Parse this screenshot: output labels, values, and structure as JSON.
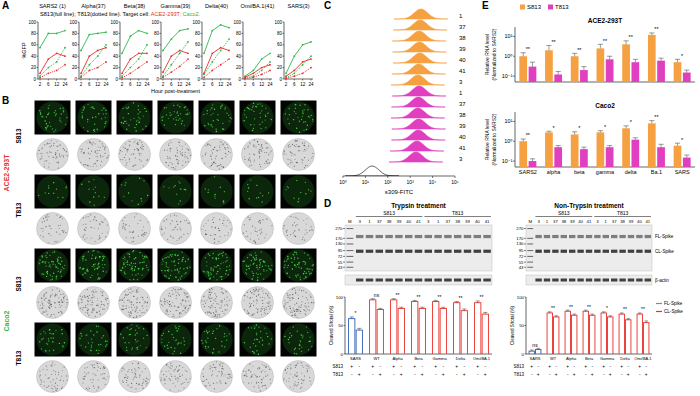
{
  "panel_labels": [
    "A",
    "B",
    "C",
    "D",
    "E"
  ],
  "panel_a": {
    "legend_parts": [
      {
        "text": "S813(full line); T813(dotted line). Target cell: ",
        "color": "#000000"
      },
      {
        "text": "ACE2-293T;",
        "color": "#e8302a"
      },
      {
        "text": " Caco2.",
        "color": "#2db84a"
      }
    ],
    "x_label": "Hour post-treatment"
  },
  "panel_b": {
    "cell_lines": [
      {
        "name": "ACE2-293T",
        "color": "#e8302a"
      },
      {
        "name": "Caco2",
        "color": "#2db84a"
      }
    ],
    "antibodies": [
      "S813",
      "T813"
    ]
  },
  "panel_d": {
    "ylim": [
      36,
      320
    ],
    "mw_markers": [
      270,
      170,
      130,
      95,
      72,
      55,
      43
    ],
    "bands": [
      {
        "label": "FL-Spike",
        "mw": 185
      },
      {
        "label": "CL-Spike",
        "mw": 92
      }
    ],
    "actin_label": "β-actin",
    "blots": [
      {
        "title": "Trypsin treatment",
        "lanes": [
          "M",
          "3",
          "1",
          "37",
          "38",
          "39",
          "40",
          "41",
          "3",
          "1",
          "37",
          "38",
          "39",
          "40",
          "41"
        ],
        "groups": [
          {
            "text": "S813",
            "first": 1,
            "last": 7
          },
          {
            "text": "T813",
            "first": 8,
            "last": 14
          }
        ]
      },
      {
        "title": "Non-Trypsin treatment",
        "lanes": [
          "M",
          "3",
          "1",
          "37",
          "38",
          "39",
          "40",
          "41",
          "3",
          "1",
          "37",
          "38",
          "39",
          "40",
          "41"
        ],
        "groups": [
          {
            "text": "S813",
            "first": 1,
            "last": 7
          },
          {
            "text": "T813",
            "first": 8,
            "last": 14
          }
        ]
      }
    ]
  },
  "chart_data": [
    {
      "type": "line",
      "title": "SARS2 (1)",
      "y_label": "%GFP",
      "categories": [
        "2",
        "6",
        "12",
        "24"
      ],
      "ylim": [
        0,
        100
      ],
      "yticks": [
        0,
        20,
        40,
        60,
        80,
        100
      ],
      "series": [
        {
          "color": "#2db84a",
          "line_style": "solid",
          "values": [
            55,
            80,
            80,
            85
          ]
        },
        {
          "color": "#2db84a",
          "line_style": "dotted",
          "values": [
            5,
            20,
            30,
            55
          ]
        },
        {
          "color": "#e8302a",
          "line_style": "solid",
          "values": [
            10,
            35,
            45,
            40
          ]
        },
        {
          "color": "#e8302a",
          "line_style": "dotted",
          "values": [
            2,
            10,
            15,
            25
          ]
        }
      ]
    },
    {
      "type": "line",
      "title": "Alpha(37)",
      "categories": [
        "2",
        "6",
        "12",
        "24"
      ],
      "ylim": [
        0,
        100
      ],
      "yticks": [
        0,
        20,
        40,
        60,
        80,
        100
      ],
      "series": [
        {
          "color": "#2db84a",
          "line_style": "solid",
          "values": [
            50,
            78,
            80,
            82
          ]
        },
        {
          "color": "#2db84a",
          "line_style": "dotted",
          "values": [
            5,
            25,
            40,
            60
          ]
        },
        {
          "color": "#e8302a",
          "line_style": "solid",
          "values": [
            10,
            40,
            50,
            55
          ]
        },
        {
          "color": "#e8302a",
          "line_style": "dotted",
          "values": [
            3,
            15,
            20,
            30
          ]
        }
      ]
    },
    {
      "type": "line",
      "title": "Beta(38)",
      "categories": [
        "2",
        "6",
        "12",
        "24"
      ],
      "ylim": [
        0,
        100
      ],
      "yticks": [
        0,
        20,
        40,
        60,
        80,
        100
      ],
      "series": [
        {
          "color": "#2db84a",
          "line_style": "solid",
          "values": [
            45,
            75,
            85,
            80
          ]
        },
        {
          "color": "#2db84a",
          "line_style": "dotted",
          "values": [
            5,
            20,
            35,
            60
          ]
        },
        {
          "color": "#e8302a",
          "line_style": "solid",
          "values": [
            10,
            35,
            45,
            45
          ]
        },
        {
          "color": "#e8302a",
          "line_style": "dotted",
          "values": [
            2,
            10,
            20,
            30
          ]
        }
      ]
    },
    {
      "type": "line",
      "title": "Gamma(39)",
      "categories": [
        "2",
        "6",
        "12",
        "24"
      ],
      "ylim": [
        0,
        100
      ],
      "yticks": [
        0,
        20,
        40,
        60,
        80,
        100
      ],
      "series": [
        {
          "color": "#2db84a",
          "line_style": "solid",
          "values": [
            50,
            70,
            85,
            88
          ]
        },
        {
          "color": "#2db84a",
          "line_style": "dotted",
          "values": [
            5,
            25,
            45,
            65
          ]
        },
        {
          "color": "#e8302a",
          "line_style": "solid",
          "values": [
            12,
            40,
            50,
            45
          ]
        },
        {
          "color": "#e8302a",
          "line_style": "dotted",
          "values": [
            3,
            12,
            22,
            35
          ]
        }
      ]
    },
    {
      "type": "line",
      "title": "Delta(40)",
      "categories": [
        "2",
        "6",
        "12",
        "24"
      ],
      "ylim": [
        0,
        100
      ],
      "yticks": [
        0,
        20,
        40,
        60,
        80,
        100
      ],
      "series": [
        {
          "color": "#2db84a",
          "line_style": "solid",
          "values": [
            45,
            85,
            95,
            90
          ]
        },
        {
          "color": "#2db84a",
          "line_style": "dotted",
          "values": [
            8,
            30,
            50,
            70
          ]
        },
        {
          "color": "#e8302a",
          "line_style": "solid",
          "values": [
            10,
            45,
            55,
            50
          ]
        },
        {
          "color": "#e8302a",
          "line_style": "dotted",
          "values": [
            3,
            15,
            25,
            35
          ]
        }
      ]
    },
    {
      "type": "line",
      "title": "Omi/BA.1(41)",
      "categories": [
        "2",
        "6",
        "12",
        "24"
      ],
      "ylim": [
        0,
        100
      ],
      "yticks": [
        0,
        20,
        40,
        60,
        80,
        100
      ],
      "series": [
        {
          "color": "#2db84a",
          "line_style": "solid",
          "values": [
            5,
            15,
            35,
            45
          ]
        },
        {
          "color": "#2db84a",
          "line_style": "dotted",
          "values": [
            2,
            5,
            15,
            30
          ]
        },
        {
          "color": "#e8302a",
          "line_style": "solid",
          "values": [
            3,
            10,
            20,
            25
          ]
        },
        {
          "color": "#e8302a",
          "line_style": "dotted",
          "values": [
            1,
            3,
            8,
            15
          ]
        }
      ]
    },
    {
      "type": "line",
      "title": "SARS(3)",
      "categories": [
        "2",
        "6",
        "12",
        "24"
      ],
      "ylim": [
        0,
        100
      ],
      "yticks": [
        0,
        20,
        40,
        60,
        80,
        100
      ],
      "series": [
        {
          "color": "#2db84a",
          "line_style": "solid",
          "values": [
            10,
            40,
            60,
            65
          ]
        },
        {
          "color": "#2db84a",
          "line_style": "dotted",
          "values": [
            2,
            10,
            25,
            40
          ]
        },
        {
          "color": "#e8302a",
          "line_style": "solid",
          "values": [
            5,
            15,
            30,
            35
          ]
        },
        {
          "color": "#e8302a",
          "line_style": "dotted",
          "values": [
            1,
            5,
            10,
            20
          ]
        }
      ]
    },
    {
      "type": "flow_histogram",
      "x_label": "s309-FITC",
      "log": "x",
      "xlim": [
        1,
        100000
      ],
      "xticks": [
        {
          "value": 1,
          "label": "10⁰"
        },
        {
          "value": 10,
          "label": "10¹"
        },
        {
          "value": 100,
          "label": "10²"
        },
        {
          "value": 1000,
          "label": "10³"
        },
        {
          "value": 10000,
          "label": "10⁴"
        },
        {
          "value": 100000,
          "label": "10⁵"
        }
      ],
      "rows": [
        {
          "label": "1",
          "color": "#f5a142",
          "peak": 3000
        },
        {
          "label": "37",
          "color": "#f5a142",
          "peak": 2800
        },
        {
          "label": "38",
          "color": "#f5a142",
          "peak": 2500
        },
        {
          "label": "39",
          "color": "#f5a142",
          "peak": 2600
        },
        {
          "label": "40",
          "color": "#f5a142",
          "peak": 2700
        },
        {
          "label": "41",
          "color": "#f5a142",
          "peak": 2400
        },
        {
          "label": "3",
          "color": "#f5a142",
          "peak": 2200
        },
        {
          "label": "1",
          "color": "#e040c0",
          "peak": 2500
        },
        {
          "label": "37",
          "color": "#e040c0",
          "peak": 2300
        },
        {
          "label": "38",
          "color": "#e040c0",
          "peak": 2200
        },
        {
          "label": "39",
          "color": "#e040c0",
          "peak": 2400
        },
        {
          "label": "40",
          "color": "#e040c0",
          "peak": 2300
        },
        {
          "label": "41",
          "color": "#e040c0",
          "peak": 2000
        },
        {
          "label": "3",
          "color": "#e040c0",
          "peak": 1800
        }
      ],
      "control": {
        "color": "#000000",
        "peak": 20
      }
    },
    {
      "type": "bar",
      "y_label": "Cleaved S/total (%)",
      "categories": [
        "SARS",
        "WT",
        "Alpha",
        "Beta",
        "Gamma",
        "Delta",
        "Omi/BA.1"
      ],
      "ylim": [
        0,
        100
      ],
      "yticks": [
        0,
        50,
        100
      ],
      "series": [
        {
          "values": [
            62,
            95,
            95,
            92,
            92,
            90,
            90
          ],
          "errors": [
            3,
            2,
            2,
            2,
            2,
            2,
            3
          ],
          "colors": [
            "#2f5fb5",
            "#e8302a",
            "#e8302a",
            "#e8302a",
            "#e8302a",
            "#e8302a",
            "#e8302a"
          ]
        },
        {
          "values": [
            42,
            78,
            80,
            80,
            80,
            76,
            70
          ],
          "errors": [
            3,
            2,
            2,
            2,
            2,
            3,
            3
          ],
          "colors": [
            "#2f5fb5",
            "#e8302a",
            "#e8302a",
            "#e8302a",
            "#e8302a",
            "#e8302a",
            "#e8302a"
          ]
        }
      ],
      "significance": [
        "*",
        "ns",
        "**",
        "**",
        "**",
        "**",
        "**"
      ],
      "condition_rows": [
        {
          "label": "S813",
          "signs": [
            "+",
            "-",
            "+",
            "-",
            "+",
            "-",
            "+",
            "-",
            "+",
            "-",
            "+",
            "-",
            "+",
            "-"
          ]
        },
        {
          "label": "T813",
          "signs": [
            "-",
            "+",
            "-",
            "+",
            "-",
            "+",
            "-",
            "+",
            "-",
            "+",
            "-",
            "+",
            "-",
            "+"
          ]
        }
      ]
    },
    {
      "type": "bar",
      "y_label": "Cleaved S/total (%)",
      "categories": [
        "SARS",
        "WT",
        "Alpha",
        "Beta",
        "Gamma",
        "Delta",
        "Omi/BA.1"
      ],
      "ylim": [
        0,
        100
      ],
      "yticks": [
        0,
        50,
        100
      ],
      "series": [
        {
          "values": [
            5,
            72,
            75,
            75,
            72,
            70,
            70
          ],
          "errors": [
            2,
            2,
            2,
            2,
            2,
            2,
            2
          ],
          "colors": [
            "#2f5fb5",
            "#e8302a",
            "#e8302a",
            "#e8302a",
            "#e8302a",
            "#e8302a",
            "#e8302a"
          ]
        },
        {
          "values": [
            8,
            65,
            68,
            68,
            65,
            60,
            55
          ],
          "errors": [
            2,
            2,
            2,
            2,
            2,
            2,
            3
          ],
          "colors": [
            "#2f5fb5",
            "#e8302a",
            "#e8302a",
            "#e8302a",
            "#e8302a",
            "#e8302a",
            "#e8302a"
          ]
        }
      ],
      "significance": [
        "ns",
        "**",
        "**",
        "**",
        "*",
        "**",
        "**"
      ],
      "condition_rows": [
        {
          "label": "S813",
          "signs": [
            "+",
            "-",
            "+",
            "-",
            "+",
            "-",
            "+",
            "-",
            "+",
            "-",
            "+",
            "-",
            "+",
            "-"
          ]
        },
        {
          "label": "T813",
          "signs": [
            "-",
            "+",
            "-",
            "+",
            "-",
            "+",
            "-",
            "+",
            "-",
            "+",
            "-",
            "+",
            "-",
            "+"
          ]
        }
      ],
      "legend_items": [
        {
          "name": "FL-Spike",
          "color": "#888888"
        },
        {
          "name": "CL-Spike",
          "color": "#e8302a"
        }
      ]
    },
    {
      "type": "bar",
      "log": "y",
      "title": "ACE2-293T",
      "y_label": [
        "Relative RNA level",
        "(Normalized to SARS2)"
      ],
      "legend": "top-left",
      "tick_labels": "y",
      "categories": [
        "SARS2",
        "alpha",
        "beta",
        "gamma",
        "delta",
        "Ba.1",
        "SARS"
      ],
      "ylim": [
        0.05,
        30
      ],
      "yticks": [
        {
          "value": 0.1,
          "label": "10⁻¹"
        },
        {
          "value": 1,
          "label": "10⁰"
        },
        {
          "value": 10,
          "label": "10¹"
        }
      ],
      "series": [
        {
          "name": "S813",
          "color": "#f5a142",
          "values": [
            1,
            2,
            1,
            2.5,
            4,
            12,
            0.5
          ],
          "errors": [
            0.5,
            1.5,
            0.4,
            1.5,
            2,
            3,
            0.2
          ]
        },
        {
          "name": "T813",
          "color": "#e040c0",
          "values": [
            0.3,
            0.12,
            0.2,
            0.7,
            0.5,
            0.6,
            0.15
          ],
          "errors": [
            0.2,
            0.05,
            0.1,
            0.3,
            0.2,
            0.2,
            0.05
          ]
        }
      ],
      "significance": [
        "**",
        "**",
        "**",
        "**",
        "**",
        "**",
        "*"
      ]
    },
    {
      "type": "bar",
      "log": "y",
      "title": "Caco2",
      "y_label": [
        "Relative RNA level",
        "(Normalized to SARS2)"
      ],
      "categories": [
        "SARS2",
        "alpha",
        "beta",
        "gamma",
        "delta",
        "Ba.1",
        "SARS"
      ],
      "ylim": [
        0.05,
        30
      ],
      "yticks": [
        {
          "value": 0.1,
          "label": "10⁻¹"
        },
        {
          "value": 1,
          "label": "10⁰"
        },
        {
          "value": 10,
          "label": "10¹"
        }
      ],
      "series": [
        {
          "name": "S813",
          "color": "#f5a142",
          "values": [
            1,
            2.8,
            2.2,
            2.8,
            4.5,
            8,
            0.6
          ],
          "errors": [
            0.3,
            0.4,
            0.8,
            0.6,
            1.5,
            3,
            0.2
          ]
        },
        {
          "name": "T813",
          "color": "#e040c0",
          "values": [
            0.1,
            0.5,
            0.4,
            0.5,
            1.2,
            0.5,
            0.15
          ],
          "errors": [
            0.03,
            0.1,
            0.1,
            0.1,
            0.3,
            0.2,
            0.05
          ]
        }
      ],
      "significance": [
        "**",
        "*",
        "*",
        "*",
        "*",
        "**",
        "*"
      ]
    }
  ]
}
